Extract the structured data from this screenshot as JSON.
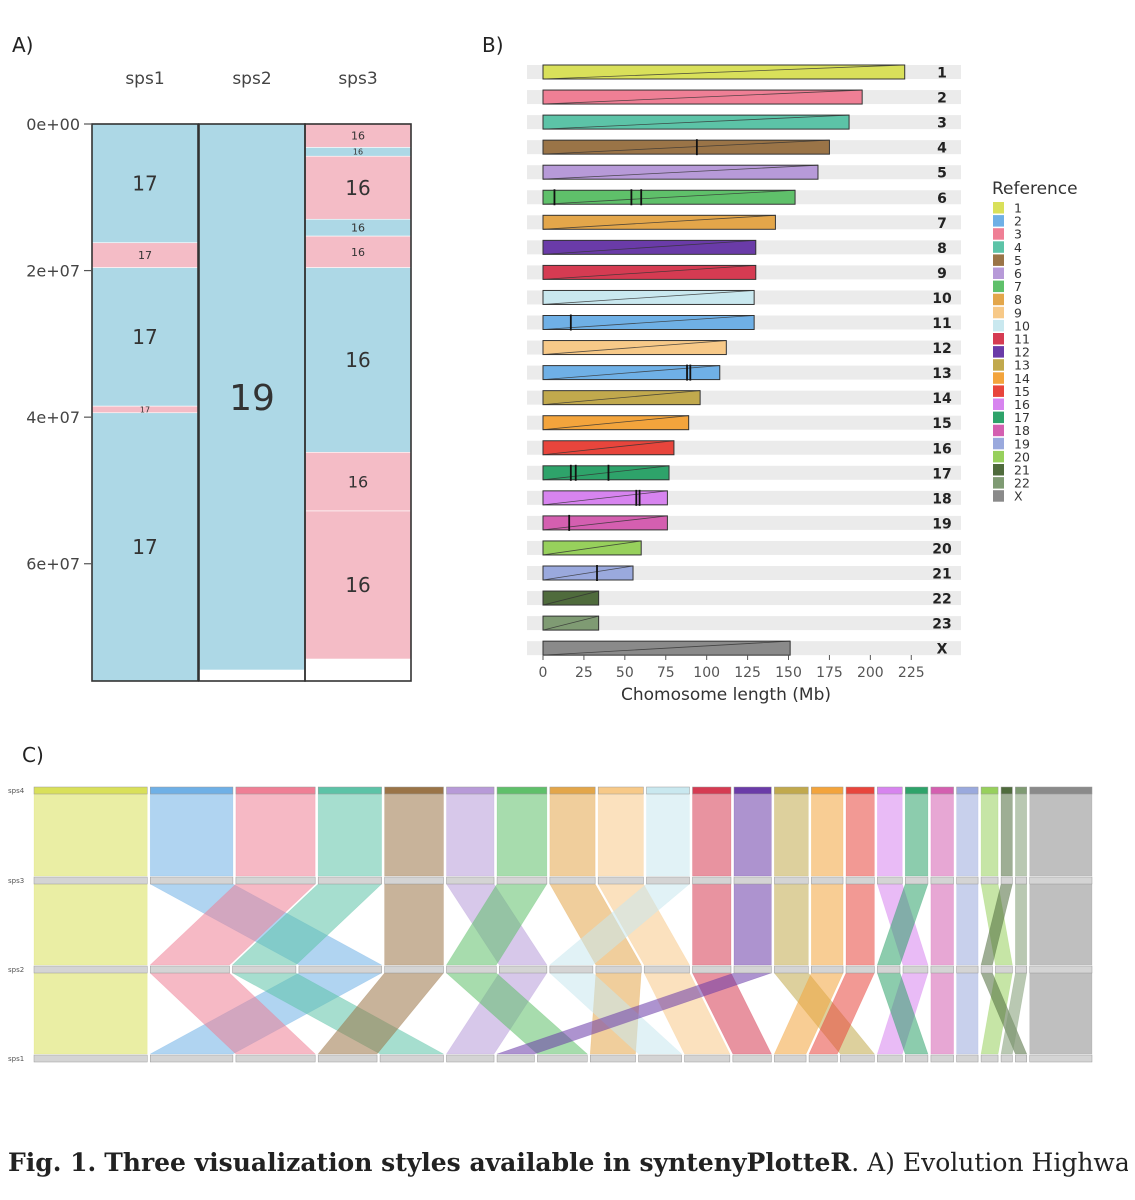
{
  "panel_a": {
    "label": "A)",
    "chart_data": {
      "type": "evolution-highway",
      "columns": [
        "sps1",
        "sps2",
        "sps3"
      ],
      "ylim": [
        0,
        76000000
      ],
      "yticks": [
        0,
        20000000,
        40000000,
        60000000
      ],
      "ytick_labels": [
        "0e+00",
        "2e+07",
        "4e+07",
        "6e+07"
      ],
      "column_ends": [
        76000000,
        74500000,
        74500000
      ],
      "colors": {
        "forward": "#add8e6",
        "reverse": "#f4bcc6"
      },
      "blocks": [
        {
          "col": 0,
          "start": 0,
          "end": 16200000,
          "label": "17",
          "orient": "forward",
          "size": "big"
        },
        {
          "col": 0,
          "start": 16200000,
          "end": 19600000,
          "label": "17",
          "orient": "reverse",
          "size": "small"
        },
        {
          "col": 0,
          "start": 19600000,
          "end": 38500000,
          "label": "17",
          "orient": "forward",
          "size": "big"
        },
        {
          "col": 0,
          "start": 38500000,
          "end": 39400000,
          "label": "17",
          "orient": "reverse",
          "size": "tiny"
        },
        {
          "col": 0,
          "start": 39400000,
          "end": 76000000,
          "label": "17",
          "orient": "forward",
          "size": "big"
        },
        {
          "col": 1,
          "start": 0,
          "end": 74500000,
          "label": "19",
          "orient": "forward",
          "size": "huge"
        },
        {
          "col": 2,
          "start": 0,
          "end": 3200000,
          "label": "16",
          "orient": "reverse",
          "size": "small"
        },
        {
          "col": 2,
          "start": 3200000,
          "end": 4400000,
          "label": "16",
          "orient": "forward",
          "size": "tiny"
        },
        {
          "col": 2,
          "start": 4400000,
          "end": 13000000,
          "label": "16",
          "orient": "reverse",
          "size": "big"
        },
        {
          "col": 2,
          "start": 13000000,
          "end": 15300000,
          "label": "16",
          "orient": "forward",
          "size": "small"
        },
        {
          "col": 2,
          "start": 15300000,
          "end": 19600000,
          "label": "16",
          "orient": "reverse",
          "size": "small"
        },
        {
          "col": 2,
          "start": 19600000,
          "end": 44800000,
          "label": "16",
          "orient": "forward",
          "size": "big"
        },
        {
          "col": 2,
          "start": 44800000,
          "end": 52800000,
          "label": "16",
          "orient": "reverse",
          "size": "mid"
        },
        {
          "col": 2,
          "start": 52800000,
          "end": 73000000,
          "label": "16",
          "orient": "reverse",
          "size": "big"
        }
      ]
    }
  },
  "panel_b": {
    "label": "B)",
    "chart_data": {
      "type": "bar",
      "xlabel": "Chomosome length (Mb)",
      "xlim": [
        0,
        230
      ],
      "xticks": [
        0,
        25,
        50,
        75,
        100,
        125,
        150,
        175,
        200,
        225
      ],
      "legend_title": "Reference",
      "legend_position": "right",
      "legend": [
        {
          "name": "1",
          "color": "#d9e05a"
        },
        {
          "name": "2",
          "color": "#6fb0e6"
        },
        {
          "name": "3",
          "color": "#ef7f95"
        },
        {
          "name": "4",
          "color": "#5cc3a7"
        },
        {
          "name": "5",
          "color": "#9a7447"
        },
        {
          "name": "6",
          "color": "#b79ad8"
        },
        {
          "name": "7",
          "color": "#5fc06a"
        },
        {
          "name": "8",
          "color": "#e3a64a"
        },
        {
          "name": "9",
          "color": "#f7c988"
        },
        {
          "name": "10",
          "color": "#c9e8ef"
        },
        {
          "name": "11",
          "color": "#d53b52"
        },
        {
          "name": "12",
          "color": "#6a3ba8"
        },
        {
          "name": "13",
          "color": "#c1a94d"
        },
        {
          "name": "14",
          "color": "#f3a43c"
        },
        {
          "name": "15",
          "color": "#e8453c"
        },
        {
          "name": "16",
          "color": "#d784ef"
        },
        {
          "name": "17",
          "color": "#2ea36a"
        },
        {
          "name": "18",
          "color": "#d45fb0"
        },
        {
          "name": "19",
          "color": "#9aa9dd"
        },
        {
          "name": "20",
          "color": "#97d05c"
        },
        {
          "name": "21",
          "color": "#4f6b3c"
        },
        {
          "name": "22",
          "color": "#7f9b73"
        },
        {
          "name": "X",
          "color": "#8a8a8a"
        }
      ],
      "bars": [
        {
          "name": "1",
          "value": 221,
          "color": "#d9e05a",
          "breaks": []
        },
        {
          "name": "2",
          "value": 195,
          "color": "#ef7f95",
          "breaks": []
        },
        {
          "name": "3",
          "value": 187,
          "color": "#5cc3a7",
          "breaks": []
        },
        {
          "name": "4",
          "value": 175,
          "color": "#9a7447",
          "breaks": [
            94
          ]
        },
        {
          "name": "5",
          "value": 168,
          "color": "#b79ad8",
          "breaks": []
        },
        {
          "name": "6",
          "value": 154,
          "color": "#5fc06a",
          "breaks": [
            7,
            54,
            60
          ]
        },
        {
          "name": "7",
          "value": 142,
          "color": "#e3a64a",
          "breaks": []
        },
        {
          "name": "8",
          "value": 130,
          "color": "#6a3ba8",
          "breaks": []
        },
        {
          "name": "9",
          "value": 130,
          "color": "#d53b52",
          "breaks": []
        },
        {
          "name": "10",
          "value": 129,
          "color": "#c9e8ef",
          "breaks": []
        },
        {
          "name": "11",
          "value": 129,
          "color": "#6fb0e6",
          "breaks": [
            17
          ]
        },
        {
          "name": "12",
          "value": 112,
          "color": "#f7c988",
          "breaks": []
        },
        {
          "name": "13",
          "value": 108,
          "color": "#6fb0e6",
          "breaks": [
            88,
            90
          ]
        },
        {
          "name": "14",
          "value": 96,
          "color": "#c1a94d",
          "breaks": []
        },
        {
          "name": "15",
          "value": 89,
          "color": "#f3a43c",
          "breaks": []
        },
        {
          "name": "16",
          "value": 80,
          "color": "#e8453c",
          "breaks": []
        },
        {
          "name": "17",
          "value": 77,
          "color": "#2ea36a",
          "breaks": [
            17,
            20,
            40
          ]
        },
        {
          "name": "18",
          "value": 76,
          "color": "#d784ef",
          "breaks": [
            57,
            59
          ]
        },
        {
          "name": "19",
          "value": 76,
          "color": "#d45fb0",
          "breaks": [
            16
          ]
        },
        {
          "name": "20",
          "value": 60,
          "color": "#97d05c",
          "breaks": []
        },
        {
          "name": "21",
          "value": 55,
          "color": "#9aa9dd",
          "breaks": [
            33
          ]
        },
        {
          "name": "22",
          "value": 34,
          "color": "#4f6b3c",
          "breaks": []
        },
        {
          "name": "23",
          "value": 34,
          "color": "#7f9b73",
          "breaks": []
        },
        {
          "name": "X",
          "value": 151,
          "color": "#8a8a8a",
          "breaks": []
        }
      ]
    }
  },
  "panel_c": {
    "label": "C)",
    "chart_data": {
      "type": "synteny-ribbon",
      "tracks": [
        "sps4",
        "sps3",
        "sps2",
        "sps1"
      ],
      "segments": [
        {
          "color": "#d9e05a",
          "w": 100
        },
        {
          "color": "#6fb0e6",
          "w": 73
        },
        {
          "color": "#ef7f95",
          "w": 70
        },
        {
          "color": "#5cc3a7",
          "w": 56
        },
        {
          "color": "#9a7447",
          "w": 52
        },
        {
          "color": "#b79ad8",
          "w": 42
        },
        {
          "color": "#5fc06a",
          "w": 44
        },
        {
          "color": "#e3a64a",
          "w": 40
        },
        {
          "color": "#f7c988",
          "w": 40
        },
        {
          "color": "#c9e8ef",
          "w": 38
        },
        {
          "color": "#d53b52",
          "w": 34
        },
        {
          "color": "#6a3ba8",
          "w": 33
        },
        {
          "color": "#c1a94d",
          "w": 30
        },
        {
          "color": "#f3a43c",
          "w": 28
        },
        {
          "color": "#e8453c",
          "w": 25
        },
        {
          "color": "#d784ef",
          "w": 22
        },
        {
          "color": "#2ea36a",
          "w": 20
        },
        {
          "color": "#d45fb0",
          "w": 20
        },
        {
          "color": "#9aa9dd",
          "w": 19
        },
        {
          "color": "#97d05c",
          "w": 15
        },
        {
          "color": "#4f6b3c",
          "w": 10
        },
        {
          "color": "#7f9b73",
          "w": 10
        },
        {
          "color": "#8a8a8a",
          "w": 55
        }
      ],
      "permutations": {
        "sps3": [
          0,
          1,
          2,
          3,
          4,
          5,
          6,
          7,
          8,
          9,
          10,
          11,
          12,
          13,
          14,
          15,
          16,
          17,
          18,
          19,
          20,
          21,
          22
        ],
        "sps2": [
          0,
          2,
          3,
          1,
          4,
          6,
          5,
          9,
          7,
          8,
          10,
          11,
          12,
          13,
          14,
          16,
          15,
          17,
          18,
          20,
          19,
          21,
          22
        ],
        "sps1": [
          0,
          1,
          2,
          4,
          3,
          5,
          11,
          6,
          7,
          9,
          8,
          10,
          13,
          14,
          12,
          15,
          16,
          17,
          18,
          19,
          21,
          20,
          22
        ]
      }
    }
  },
  "caption": {
    "fig_label": "Fig. 1.",
    "title": "Three visualization styles available in syntenyPlotteR",
    "rest": ". A) Evolution Highway"
  }
}
